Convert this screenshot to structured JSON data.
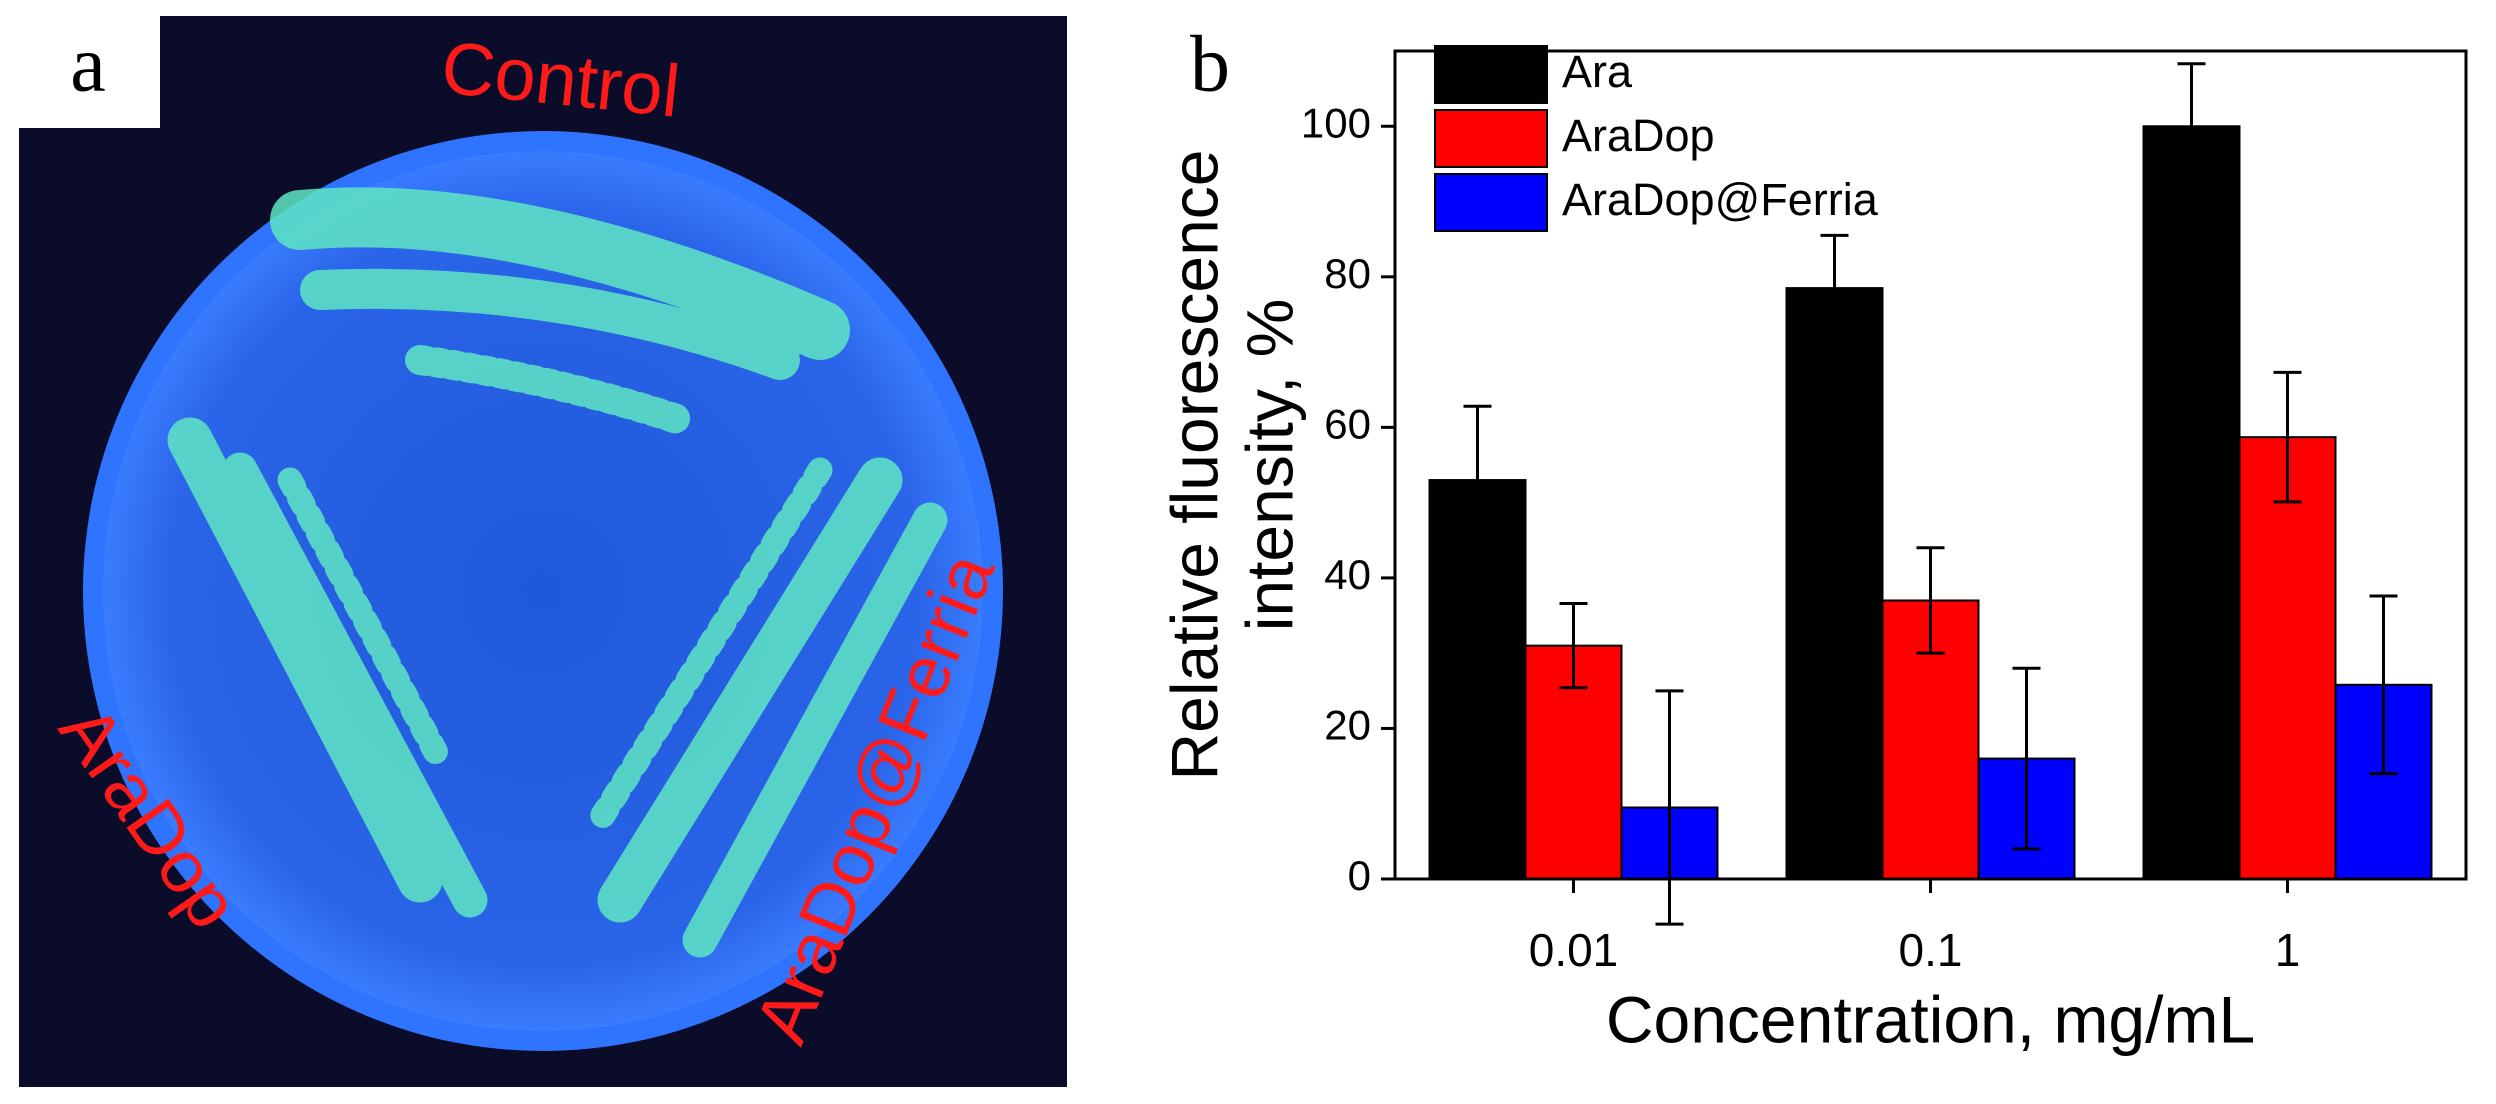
{
  "panel_a": {
    "label": "a",
    "labels": [
      "Control",
      "AraDop",
      "AraDop@Ferria"
    ]
  },
  "chart_data": {
    "type": "bar",
    "panel_label": "b",
    "categories": [
      "0.01",
      "0.1",
      "1"
    ],
    "series": [
      {
        "name": "Ara",
        "color": "#000000",
        "values": [
          53,
          78.5,
          100
        ],
        "errors": [
          9.8,
          7,
          8.3
        ]
      },
      {
        "name": "AraDop",
        "color": "#ff0000",
        "values": [
          31,
          37,
          58.7
        ],
        "errors": [
          5.6,
          7,
          8.6
        ]
      },
      {
        "name": "AraDop@Ferria",
        "color": "#0000ff",
        "values": [
          9.5,
          16,
          25.8
        ],
        "errors": [
          15.5,
          12,
          11.8
        ]
      }
    ],
    "x_label": "Concentration, mg/mL",
    "y_label": [
      "Relative fluorescence",
      "intensity, %"
    ],
    "ylim": [
      0,
      110
    ],
    "yticks": [
      0,
      20,
      40,
      60,
      80,
      100
    ],
    "legend": "upper left"
  }
}
